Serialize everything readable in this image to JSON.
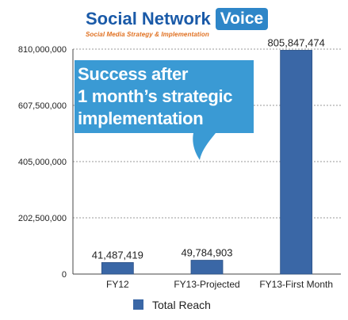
{
  "logo": {
    "brand": "Social Network",
    "accent": "Voice",
    "tagline": "Social Media Strategy & Implementation"
  },
  "callout": {
    "lines": [
      "Success after",
      "1 month’s strategic",
      "implementation"
    ],
    "color": "#3a9ad4"
  },
  "chart_data": {
    "type": "bar",
    "categories": [
      "FY12",
      "FY13-Projected",
      "FY13-First Month"
    ],
    "series": [
      {
        "name": "Total Reach",
        "values": [
          41487419,
          49784903,
          805847474
        ],
        "color": "#3a67a6"
      }
    ],
    "data_labels": [
      "41,487,419",
      "49,784,903",
      "805,847,474"
    ],
    "ylim": [
      0,
      810000000
    ],
    "yticks": [
      0,
      202500000,
      405000000,
      607500000,
      810000000
    ],
    "ytick_labels": [
      "0",
      "202,500,000",
      "405,000,000",
      "607,500,000",
      "810,000,000"
    ],
    "legend_position": "bottom",
    "grid": true
  }
}
